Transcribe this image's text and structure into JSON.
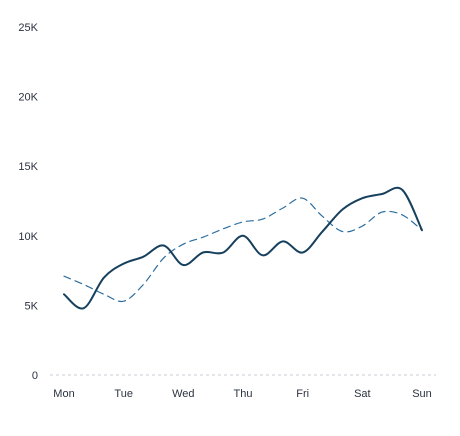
{
  "chart_data": {
    "type": "line",
    "categories": [
      "Mon",
      "Tue",
      "Wed",
      "Thu",
      "Fri",
      "Sat",
      "Sun"
    ],
    "y_ticks": [
      "0",
      "5K",
      "10K",
      "15K",
      "20K",
      "25K"
    ],
    "ylim": [
      0,
      25000
    ],
    "grid": false,
    "baseline": "dashed",
    "series": [
      {
        "style": "solid",
        "color": "#16405d",
        "x": [
          0,
          0.33,
          0.67,
          1,
          1.33,
          1.67,
          2,
          2.33,
          2.67,
          3,
          3.33,
          3.67,
          4,
          4.33,
          4.67,
          5,
          5.33,
          5.67,
          6
        ],
        "values": [
          5800,
          4800,
          7000,
          8000,
          8500,
          9300,
          7900,
          8800,
          8800,
          10000,
          8600,
          9600,
          8800,
          10300,
          11900,
          12700,
          13000,
          13300,
          10400
        ]
      },
      {
        "style": "dashed",
        "color": "#2c6ea0",
        "x": [
          0,
          0.33,
          0.67,
          1,
          1.33,
          1.67,
          2,
          2.33,
          2.67,
          3,
          3.33,
          3.67,
          4,
          4.33,
          4.67,
          5,
          5.33,
          5.67,
          6
        ],
        "values": [
          7100,
          6500,
          5800,
          5300,
          6500,
          8400,
          9400,
          9900,
          10500,
          11000,
          11200,
          12000,
          12700,
          11400,
          10300,
          10700,
          11700,
          11500,
          10400
        ]
      }
    ]
  }
}
